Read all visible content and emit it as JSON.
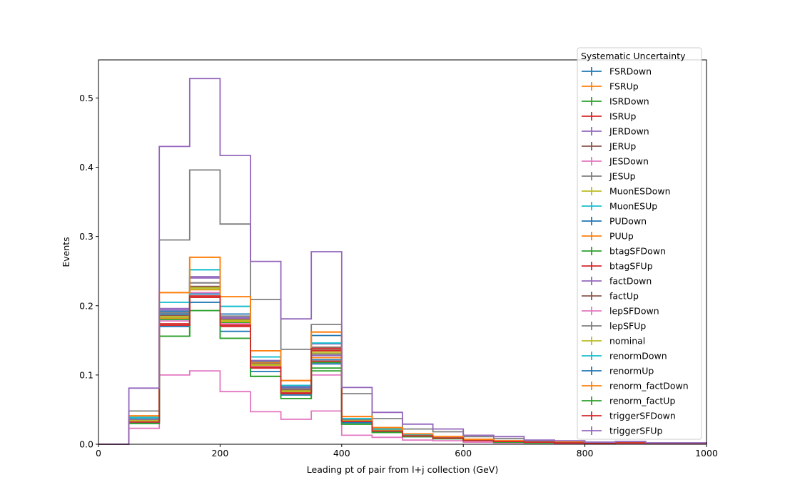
{
  "chart_data": {
    "type": "histogram",
    "xlabel": "Leading pt of pair from l+j collection (GeV)",
    "ylabel": "Events",
    "xlim": [
      0,
      1000
    ],
    "ylim": [
      0,
      0.555
    ],
    "xticks": [
      0,
      200,
      400,
      600,
      800,
      1000
    ],
    "xtick_labels": [
      "0",
      "200",
      "400",
      "600",
      "800",
      "1000"
    ],
    "yticks": [
      0.0,
      0.1,
      0.2,
      0.3,
      0.4,
      0.5
    ],
    "ytick_labels": [
      "0.0",
      "0.1",
      "0.2",
      "0.3",
      "0.4",
      "0.5"
    ],
    "bin_edges": [
      0,
      50,
      100,
      150,
      200,
      250,
      300,
      350,
      400,
      450,
      500,
      550,
      600,
      650,
      700,
      750,
      800,
      850,
      900,
      950,
      1000
    ],
    "legend": {
      "title": "Systematic Uncertainty",
      "placement": "upper-right"
    },
    "series": [
      {
        "name": "FSRDown",
        "color": "#1f77b4",
        "values": [
          0,
          0.034,
          0.188,
          0.217,
          0.18,
          0.115,
          0.08,
          0.122,
          0.033,
          0.02,
          0.012,
          0.009,
          0.005,
          0.004,
          0.003,
          0.002,
          0.001,
          0.002,
          0.001,
          0.001
        ]
      },
      {
        "name": "FSRUp",
        "color": "#ff7f0e",
        "values": [
          0,
          0.036,
          0.182,
          0.223,
          0.178,
          0.118,
          0.077,
          0.125,
          0.035,
          0.021,
          0.013,
          0.01,
          0.006,
          0.004,
          0.003,
          0.002,
          0.001,
          0.002,
          0.001,
          0.001
        ]
      },
      {
        "name": "ISRDown",
        "color": "#2ca02c",
        "values": [
          0,
          0.033,
          0.18,
          0.226,
          0.176,
          0.113,
          0.075,
          0.118,
          0.032,
          0.019,
          0.012,
          0.009,
          0.005,
          0.004,
          0.003,
          0.002,
          0.001,
          0.002,
          0.001,
          0.001
        ]
      },
      {
        "name": "ISRUp",
        "color": "#d62728",
        "values": [
          0,
          0.035,
          0.174,
          0.214,
          0.172,
          0.112,
          0.074,
          0.12,
          0.034,
          0.02,
          0.012,
          0.009,
          0.005,
          0.004,
          0.003,
          0.002,
          0.001,
          0.002,
          0.001,
          0.001
        ]
      },
      {
        "name": "JERDown",
        "color": "#9467bd",
        "values": [
          0,
          0.037,
          0.196,
          0.242,
          0.182,
          0.121,
          0.083,
          0.128,
          0.036,
          0.022,
          0.014,
          0.01,
          0.006,
          0.004,
          0.003,
          0.002,
          0.001,
          0.002,
          0.001,
          0.001
        ]
      },
      {
        "name": "JERUp",
        "color": "#8c564b",
        "values": [
          0,
          0.035,
          0.186,
          0.233,
          0.18,
          0.116,
          0.079,
          0.14,
          0.035,
          0.021,
          0.013,
          0.01,
          0.006,
          0.004,
          0.003,
          0.002,
          0.001,
          0.002,
          0.001,
          0.001
        ]
      },
      {
        "name": "JESDown",
        "color": "#e377c2",
        "values": [
          0,
          0.023,
          0.1,
          0.106,
          0.076,
          0.047,
          0.036,
          0.048,
          0.013,
          0.01,
          0.006,
          0.005,
          0.003,
          0.002,
          0.002,
          0.001,
          0.001,
          0.001,
          0.001,
          0.001
        ]
      },
      {
        "name": "JESUp",
        "color": "#7f7f7f",
        "values": [
          0,
          0.048,
          0.295,
          0.396,
          0.318,
          0.209,
          0.137,
          0.173,
          0.073,
          0.037,
          0.022,
          0.018,
          0.011,
          0.008,
          0.005,
          0.004,
          0.003,
          0.003,
          0.002,
          0.002
        ]
      },
      {
        "name": "MuonESDown",
        "color": "#bcbd22",
        "values": [
          0,
          0.034,
          0.183,
          0.224,
          0.177,
          0.114,
          0.076,
          0.131,
          0.034,
          0.02,
          0.012,
          0.009,
          0.005,
          0.004,
          0.003,
          0.002,
          0.001,
          0.002,
          0.001,
          0.001
        ]
      },
      {
        "name": "MuonESUp",
        "color": "#17becf",
        "values": [
          0,
          0.038,
          0.205,
          0.252,
          0.199,
          0.126,
          0.085,
          0.146,
          0.037,
          0.022,
          0.014,
          0.01,
          0.006,
          0.004,
          0.003,
          0.002,
          0.001,
          0.002,
          0.001,
          0.001
        ]
      },
      {
        "name": "PUDown",
        "color": "#1f77b4",
        "values": [
          0,
          0.036,
          0.192,
          0.205,
          0.188,
          0.12,
          0.082,
          0.157,
          0.034,
          0.02,
          0.012,
          0.009,
          0.005,
          0.004,
          0.003,
          0.002,
          0.001,
          0.002,
          0.001,
          0.001
        ]
      },
      {
        "name": "PUUp",
        "color": "#ff7f0e",
        "values": [
          0,
          0.041,
          0.219,
          0.27,
          0.213,
          0.135,
          0.092,
          0.162,
          0.04,
          0.024,
          0.015,
          0.011,
          0.007,
          0.005,
          0.003,
          0.003,
          0.002,
          0.003,
          0.001,
          0.001
        ]
      },
      {
        "name": "btagSFDown",
        "color": "#2ca02c",
        "values": [
          0,
          0.03,
          0.156,
          0.193,
          0.153,
          0.098,
          0.066,
          0.106,
          0.029,
          0.017,
          0.011,
          0.008,
          0.005,
          0.003,
          0.002,
          0.002,
          0.001,
          0.002,
          0.001,
          0.001
        ]
      },
      {
        "name": "btagSFUp",
        "color": "#d62728",
        "values": [
          0,
          0.033,
          0.172,
          0.212,
          0.17,
          0.11,
          0.073,
          0.135,
          0.033,
          0.019,
          0.012,
          0.009,
          0.005,
          0.004,
          0.003,
          0.002,
          0.001,
          0.002,
          0.001,
          0.001
        ]
      },
      {
        "name": "factDown",
        "color": "#9467bd",
        "values": [
          0,
          0.036,
          0.194,
          0.24,
          0.183,
          0.12,
          0.081,
          0.145,
          0.035,
          0.021,
          0.013,
          0.01,
          0.006,
          0.004,
          0.003,
          0.002,
          0.001,
          0.002,
          0.001,
          0.001
        ]
      },
      {
        "name": "factUp",
        "color": "#8c564b",
        "values": [
          0,
          0.034,
          0.184,
          0.228,
          0.18,
          0.116,
          0.078,
          0.137,
          0.034,
          0.02,
          0.012,
          0.009,
          0.005,
          0.004,
          0.003,
          0.002,
          0.001,
          0.002,
          0.001,
          0.001
        ]
      },
      {
        "name": "lepSFDown",
        "color": "#e377c2",
        "values": [
          0,
          0.033,
          0.178,
          0.219,
          0.174,
          0.112,
          0.074,
          0.1,
          0.033,
          0.019,
          0.012,
          0.009,
          0.005,
          0.004,
          0.003,
          0.002,
          0.001,
          0.002,
          0.001,
          0.001
        ]
      },
      {
        "name": "lepSFUp",
        "color": "#7f7f7f",
        "values": [
          0,
          0.035,
          0.19,
          0.233,
          0.185,
          0.119,
          0.08,
          0.13,
          0.035,
          0.021,
          0.013,
          0.01,
          0.006,
          0.004,
          0.003,
          0.002,
          0.001,
          0.002,
          0.001,
          0.001
        ]
      },
      {
        "name": "nominal",
        "color": "#bcbd22",
        "values": [
          0,
          0.034,
          0.184,
          0.226,
          0.179,
          0.115,
          0.077,
          0.133,
          0.034,
          0.02,
          0.012,
          0.009,
          0.005,
          0.004,
          0.003,
          0.002,
          0.001,
          0.002,
          0.001,
          0.001
        ]
      },
      {
        "name": "renormDown",
        "color": "#17becf",
        "values": [
          0,
          0.039,
          0.205,
          0.252,
          0.199,
          0.126,
          0.085,
          0.146,
          0.037,
          0.022,
          0.014,
          0.01,
          0.006,
          0.004,
          0.003,
          0.002,
          0.001,
          0.002,
          0.001,
          0.001
        ]
      },
      {
        "name": "renormUp",
        "color": "#1f77b4",
        "values": [
          0,
          0.031,
          0.17,
          0.205,
          0.163,
          0.105,
          0.071,
          0.116,
          0.031,
          0.018,
          0.011,
          0.008,
          0.005,
          0.003,
          0.002,
          0.002,
          0.001,
          0.002,
          0.001,
          0.001
        ]
      },
      {
        "name": "renorm_factDown",
        "color": "#ff7f0e",
        "values": [
          0,
          0.041,
          0.219,
          0.27,
          0.213,
          0.135,
          0.092,
          0.162,
          0.04,
          0.024,
          0.015,
          0.011,
          0.007,
          0.005,
          0.003,
          0.003,
          0.002,
          0.003,
          0.001,
          0.001
        ]
      },
      {
        "name": "renorm_factUp",
        "color": "#2ca02c",
        "values": [
          0,
          0.03,
          0.156,
          0.193,
          0.153,
          0.098,
          0.066,
          0.11,
          0.029,
          0.017,
          0.011,
          0.008,
          0.005,
          0.003,
          0.002,
          0.002,
          0.001,
          0.002,
          0.001,
          0.001
        ]
      },
      {
        "name": "triggerSFDown",
        "color": "#d62728",
        "values": [
          0,
          0.032,
          0.172,
          0.214,
          0.172,
          0.111,
          0.074,
          0.138,
          0.033,
          0.019,
          0.012,
          0.009,
          0.005,
          0.004,
          0.003,
          0.002,
          0.001,
          0.002,
          0.001,
          0.001
        ]
      },
      {
        "name": "triggerSFUp",
        "color": "#9467bd",
        "values": [
          0,
          0.081,
          0.43,
          0.528,
          0.417,
          0.264,
          0.181,
          0.278,
          0.082,
          0.046,
          0.029,
          0.022,
          0.013,
          0.011,
          0.006,
          0.005,
          0.003,
          0.004,
          0.002,
          0.002
        ]
      }
    ]
  }
}
